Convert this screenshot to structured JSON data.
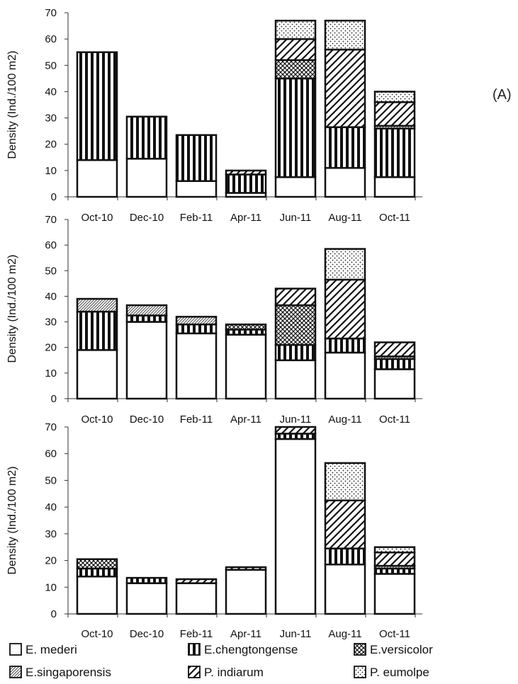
{
  "chart_data": [
    {
      "type": "bar",
      "stacked": true,
      "panel_label": "(A)",
      "ylabel": "Density (Ind./100 m2)",
      "ylim": [
        0,
        70
      ],
      "yticks": [
        0,
        10,
        20,
        30,
        40,
        50,
        60,
        70
      ],
      "categories": [
        "Oct-10",
        "Dec-10",
        "Feb-11",
        "Apr-11",
        "Jun-11",
        "Aug-11",
        "Oct-11"
      ],
      "series": [
        {
          "name": "E. mederi",
          "values": [
            14,
            14.5,
            6,
            1.5,
            7.5,
            11,
            7.5
          ]
        },
        {
          "name": "E.chengtongense",
          "values": [
            41,
            16,
            17.5,
            7,
            37.5,
            15.5,
            18.5
          ]
        },
        {
          "name": "E.versicolor",
          "values": [
            0,
            0,
            0,
            0,
            7,
            0,
            0
          ]
        },
        {
          "name": "E.singaporensis",
          "values": [
            0,
            0,
            0,
            0,
            0,
            0,
            1
          ]
        },
        {
          "name": "P. indiarum",
          "values": [
            0,
            0,
            0,
            1.5,
            8,
            29.5,
            9
          ]
        },
        {
          "name": "P. eumolpe",
          "values": [
            0,
            0,
            0,
            0,
            7,
            11,
            4
          ]
        }
      ]
    },
    {
      "type": "bar",
      "stacked": true,
      "ylabel": "Density (Ind./100 m2)",
      "ylim": [
        0,
        70
      ],
      "yticks": [
        0,
        10,
        20,
        30,
        40,
        50,
        60,
        70
      ],
      "categories": [
        "Oct-10",
        "Dec-10",
        "Feb-11",
        "Apr-11",
        "Jun-11",
        "Aug-11",
        "Oct-11"
      ],
      "series": [
        {
          "name": "E. mederi",
          "values": [
            19,
            30,
            25.5,
            25,
            15,
            18,
            11.5
          ]
        },
        {
          "name": "E.chengtongense",
          "values": [
            15,
            2.5,
            3.5,
            2,
            6,
            5.5,
            4
          ]
        },
        {
          "name": "E.versicolor",
          "values": [
            0,
            0,
            0,
            2,
            15.5,
            0,
            0
          ]
        },
        {
          "name": "E.singaporensis",
          "values": [
            5,
            4,
            3,
            0,
            0,
            0,
            1
          ]
        },
        {
          "name": "P. indiarum",
          "values": [
            0,
            0,
            0,
            0,
            6.5,
            23,
            5.5
          ]
        },
        {
          "name": "P. eumolpe",
          "values": [
            0,
            0,
            0,
            0,
            0,
            12,
            0
          ]
        }
      ]
    },
    {
      "type": "bar",
      "stacked": true,
      "ylabel": "Density (Ind./100 m2)",
      "ylim": [
        0,
        70
      ],
      "yticks": [
        0,
        10,
        20,
        30,
        40,
        50,
        60,
        70
      ],
      "categories": [
        "Oct-10",
        "Dec-10",
        "Feb-11",
        "Apr-11",
        "Jun-11",
        "Aug-11",
        "Oct-11"
      ],
      "series": [
        {
          "name": "E. mederi",
          "values": [
            14,
            11.5,
            11.5,
            16.5,
            65.5,
            18.5,
            15
          ]
        },
        {
          "name": "E.chengtongense",
          "values": [
            3,
            2,
            0,
            0,
            2,
            6,
            2
          ]
        },
        {
          "name": "E.versicolor",
          "values": [
            3.5,
            0,
            0,
            0,
            0,
            0,
            0
          ]
        },
        {
          "name": "E.singaporensis",
          "values": [
            0,
            0,
            0,
            0,
            0,
            0,
            1
          ]
        },
        {
          "name": "P. indiarum",
          "values": [
            0,
            0,
            1.5,
            1,
            2.5,
            18,
            5
          ]
        },
        {
          "name": "P. eumolpe",
          "values": [
            0,
            0,
            0,
            0,
            0,
            14,
            2
          ]
        }
      ]
    }
  ],
  "legend": [
    {
      "name": "E. mederi",
      "pattern": "blank"
    },
    {
      "name": "E.chengtongense",
      "pattern": "vertical-bars"
    },
    {
      "name": "E.versicolor",
      "pattern": "crosshatch"
    },
    {
      "name": "E.singaporensis",
      "pattern": "fine-diagonal"
    },
    {
      "name": "P. indiarum",
      "pattern": "wide-diagonal"
    },
    {
      "name": "P. eumolpe",
      "pattern": "dots"
    }
  ],
  "colors": {
    "bar_outline": "#111111",
    "fill": "#ffffff"
  }
}
